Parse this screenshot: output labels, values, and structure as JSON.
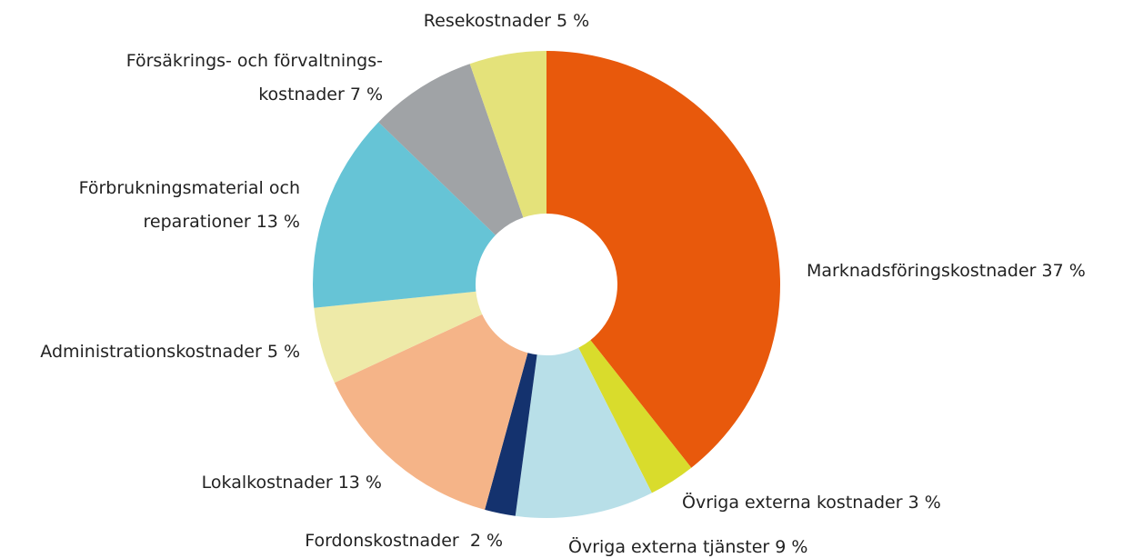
{
  "chart_data": {
    "type": "donut",
    "categories": [
      [
        "Marknadsföringskostnader"
      ],
      [
        "Övriga externa kostnader"
      ],
      [
        "Övriga externa tjänster"
      ],
      [
        "Fordonskostnader "
      ],
      [
        "Lokalkostnader"
      ],
      [
        "Administrationskostnader"
      ],
      [
        "Förbrukningsmaterial och",
        "reparationer"
      ],
      [
        "Försäkrings- och förvaltnings-",
        "kostnader"
      ],
      [
        "Resekostnader"
      ]
    ],
    "values": [
      37,
      3,
      9,
      2,
      13,
      5,
      13,
      7,
      5
    ],
    "value_labels": [
      "37 %",
      "3 %",
      "9 %",
      "2 %",
      "13 %",
      "5 %",
      "13 %",
      "7 %",
      "5 %"
    ],
    "colors": [
      "#e8590c",
      "#d9dc2c",
      "#b8dfe8",
      "#14326e",
      "#f5b488",
      "#eeeaa8",
      "#66c4d6",
      "#a0a3a6",
      "#e4e27a"
    ]
  }
}
